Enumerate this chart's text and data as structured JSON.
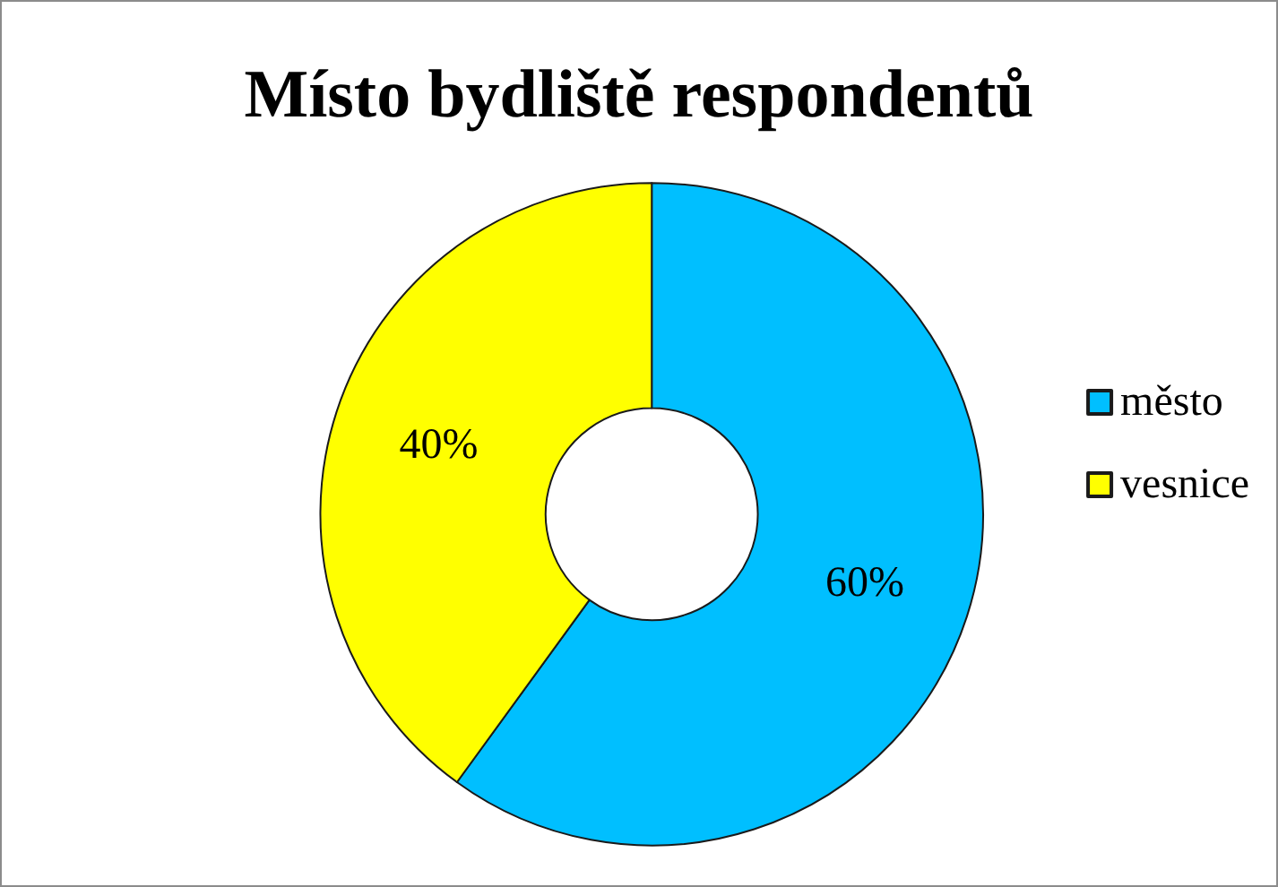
{
  "chart_data": {
    "type": "donut",
    "title": "Místo bydliště respondentů",
    "categories": [
      "město",
      "vesnice"
    ],
    "values": [
      60,
      40
    ],
    "value_labels": [
      "60%",
      "40%"
    ],
    "colors": [
      "#00bfff",
      "#ffff00"
    ],
    "legend": "right"
  }
}
